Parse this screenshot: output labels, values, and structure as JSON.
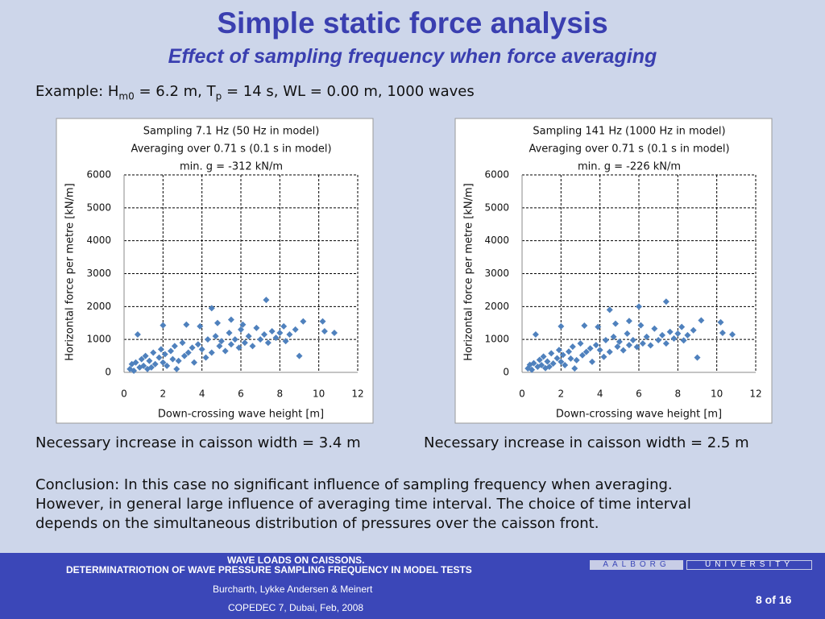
{
  "title": "Simple static force analysis",
  "subtitle": "Effect of sampling frequency when force averaging",
  "example": [
    "Example: H",
    "m0",
    " = 6.2 m, T",
    "p",
    " = 14 s, WL = 0.00 m, 1000 waves"
  ],
  "results": [
    "Necessary increase in caisson width = 3.4 m",
    "Necessary increase in caisson width = 2.5 m"
  ],
  "conclusion": [
    "Conclusion: In this case no significant influence of sampling frequency when averaging.",
    "However, in general large influence of averaging time interval. The choice of time interval",
    "depends on the simultaneous distribution of pressures over the caisson front."
  ],
  "footer": {
    "heading": "WAVE LOADS ON CAISSONS.",
    "subheading": "DETERMINATRIOTION OF WAVE PRESSURE SAMPLING FREQUENCY IN MODEL TESTS",
    "authors": "Burcharth, Lykke Andersen & Meinert",
    "event": "COPEDEC 7, Dubai, Feb, 2008",
    "page": "8 of 16",
    "logo": [
      "AALBORG",
      "UNIVERSITY"
    ]
  },
  "chart_data": [
    {
      "type": "scatter",
      "title": [
        "Sampling 7.1 Hz (50 Hz in model)",
        "Averaging over 0.71 s (0.1 s in model)",
        "min. g = -312 kN/m"
      ],
      "xlabel": "Down-crossing wave height [m]",
      "ylabel": "Horizontal force per metre [kN/m]",
      "xlim": [
        0,
        12
      ],
      "xticks": [
        0,
        2,
        4,
        6,
        8,
        10,
        12
      ],
      "ylim": [
        0,
        6000
      ],
      "yticks": [
        0,
        1000,
        2000,
        3000,
        4000,
        5000,
        6000
      ],
      "grid": true,
      "color": "#4f81bd",
      "x": [
        0.3,
        0.4,
        0.5,
        0.6,
        0.8,
        0.9,
        1.0,
        1.1,
        1.2,
        1.3,
        1.5,
        1.6,
        1.8,
        1.9,
        2.0,
        2.1,
        2.2,
        2.4,
        2.5,
        2.6,
        2.8,
        3.0,
        3.1,
        3.3,
        3.5,
        3.6,
        3.8,
        4.0,
        4.2,
        4.3,
        4.5,
        4.7,
        4.9,
        5.0,
        5.2,
        5.4,
        5.5,
        5.7,
        5.9,
        6.0,
        6.2,
        6.4,
        6.6,
        6.8,
        7.0,
        7.2,
        7.4,
        7.6,
        7.8,
        8.0,
        8.3,
        8.5,
        8.8,
        9.0,
        9.2,
        0.7,
        2.0,
        3.2,
        4.5,
        5.5,
        7.3,
        8.2,
        10.2,
        10.3,
        10.8,
        3.9,
        4.8,
        6.1,
        1.4,
        2.7
      ],
      "y": [
        100,
        250,
        50,
        300,
        150,
        400,
        200,
        500,
        100,
        350,
        600,
        250,
        450,
        700,
        300,
        550,
        200,
        650,
        400,
        800,
        350,
        900,
        500,
        600,
        750,
        300,
        850,
        700,
        450,
        1000,
        600,
        1100,
        800,
        950,
        650,
        1200,
        850,
        1000,
        750,
        1300,
        900,
        1100,
        800,
        1350,
        1000,
        1150,
        900,
        1250,
        1050,
        1200,
        950,
        1150,
        1300,
        500,
        1550,
        1150,
        1430,
        1450,
        1950,
        1600,
        2200,
        1400,
        1550,
        1250,
        1200,
        1400,
        1500,
        1450,
        150,
        100
      ]
    },
    {
      "type": "scatter",
      "title": [
        "Sampling 141 Hz (1000 Hz in model)",
        "Averaging over 0.71 s (0.1 s in model)",
        "min. g = -226 kN/m"
      ],
      "xlabel": "Down-crossing wave height [m]",
      "ylabel": "Horizontal force per metre [kN/m]",
      "xlim": [
        0,
        12
      ],
      "xticks": [
        0,
        2,
        4,
        6,
        8,
        10,
        12
      ],
      "ylim": [
        0,
        6000
      ],
      "yticks": [
        0,
        1000,
        2000,
        3000,
        4000,
        5000,
        6000
      ],
      "grid": true,
      "color": "#4f81bd",
      "x": [
        0.3,
        0.4,
        0.5,
        0.6,
        0.8,
        0.9,
        1.0,
        1.1,
        1.2,
        1.3,
        1.5,
        1.6,
        1.8,
        1.9,
        2.0,
        2.1,
        2.2,
        2.4,
        2.5,
        2.6,
        2.8,
        3.0,
        3.1,
        3.3,
        3.5,
        3.6,
        3.8,
        4.0,
        4.2,
        4.3,
        4.5,
        4.7,
        4.9,
        5.0,
        5.2,
        5.4,
        5.5,
        5.7,
        5.9,
        6.0,
        6.2,
        6.4,
        6.6,
        6.8,
        7.0,
        7.2,
        7.4,
        7.6,
        7.8,
        8.0,
        8.3,
        8.5,
        8.8,
        9.0,
        9.2,
        0.7,
        2.0,
        3.2,
        4.5,
        5.5,
        7.4,
        8.2,
        10.2,
        10.3,
        10.8,
        3.9,
        4.8,
        6.1,
        1.4,
        2.7
      ],
      "y": [
        120,
        230,
        80,
        280,
        170,
        380,
        220,
        480,
        130,
        330,
        580,
        270,
        430,
        680,
        320,
        530,
        220,
        630,
        420,
        780,
        370,
        880,
        520,
        620,
        730,
        320,
        830,
        680,
        470,
        980,
        620,
        1080,
        780,
        930,
        670,
        1180,
        830,
        980,
        770,
        2000,
        880,
        1080,
        820,
        1330,
        980,
        1130,
        880,
        1230,
        1030,
        1180,
        970,
        1130,
        1280,
        450,
        1580,
        1150,
        1400,
        1420,
        1900,
        1560,
        2150,
        1380,
        1520,
        1200,
        1150,
        1380,
        1480,
        1430,
        170,
        120
      ]
    }
  ]
}
